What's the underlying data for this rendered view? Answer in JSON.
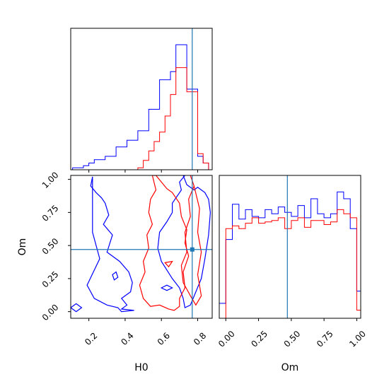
{
  "colors": {
    "series_a": "#0000ff",
    "series_b": "#ff0000",
    "truth": "#1f77b4",
    "axes": "#000000"
  },
  "chart_data": [
    {
      "type": "histogram",
      "panel": "H0 marginal",
      "xlim": [
        0.1,
        0.88
      ],
      "y_ticks_shown": false,
      "series": [
        {
          "color": "blue",
          "bin_edges": [
            0.11,
            0.14,
            0.17,
            0.2,
            0.23,
            0.26,
            0.29,
            0.32,
            0.35,
            0.38,
            0.41,
            0.44,
            0.47,
            0.5,
            0.53,
            0.56,
            0.59,
            0.62,
            0.65,
            0.68,
            0.71,
            0.74,
            0.77,
            0.8,
            0.83,
            0.86
          ],
          "heights": [
            0.015,
            0.015,
            0.03,
            0.05,
            0.075,
            0.075,
            0.1,
            0.1,
            0.17,
            0.17,
            0.22,
            0.22,
            0.29,
            0.29,
            0.45,
            0.45,
            0.67,
            0.67,
            0.73,
            0.93,
            0.93,
            0.6,
            0.6,
            0.1,
            0.05
          ]
        },
        {
          "color": "red",
          "bin_edges": [
            0.11,
            0.14,
            0.17,
            0.2,
            0.23,
            0.26,
            0.29,
            0.32,
            0.35,
            0.38,
            0.41,
            0.44,
            0.47,
            0.5,
            0.53,
            0.56,
            0.59,
            0.62,
            0.65,
            0.68,
            0.71,
            0.74,
            0.77,
            0.8,
            0.83,
            0.86
          ],
          "heights": [
            0,
            0,
            0,
            0,
            0,
            0,
            0,
            0,
            0,
            0,
            0,
            0,
            0.015,
            0.07,
            0.14,
            0.21,
            0.28,
            0.4,
            0.56,
            0.76,
            0.76,
            0.58,
            0.58,
            0.12,
            0.05
          ]
        }
      ],
      "vline": 0.77
    },
    {
      "type": "contour",
      "panel": "H0 vs Om",
      "xlabel": "H0",
      "ylabel": "Om",
      "xlim": [
        0.1,
        0.88
      ],
      "ylim": [
        -0.05,
        1.03
      ],
      "xticks": [
        0.2,
        0.4,
        0.6,
        0.8
      ],
      "xtick_labels": [
        "0.2",
        "0.4",
        "0.6",
        "0.8"
      ],
      "yticks": [
        0.0,
        0.25,
        0.5,
        0.75,
        1.0
      ],
      "ytick_labels": [
        "0.00",
        "0.25",
        "0.50",
        "0.75",
        "1.00"
      ],
      "contours": [
        {
          "color": "blue",
          "level": "outer",
          "x": [
            0.22,
            0.21,
            0.24,
            0.27,
            0.29,
            0.31,
            0.28,
            0.33,
            0.3,
            0.37,
            0.42,
            0.44,
            0.43,
            0.38,
            0.41,
            0.38,
            0.45,
            0.38,
            0.36,
            0.3,
            0.23,
            0.19,
            0.26,
            0.22
          ],
          "y": [
            1.02,
            0.95,
            0.9,
            0.86,
            0.82,
            0.73,
            0.66,
            0.58,
            0.45,
            0.38,
            0.3,
            0.22,
            0.15,
            0.1,
            0.05,
            0.02,
            0.01,
            0.0,
            0.03,
            0.05,
            0.1,
            0.2,
            0.4,
            0.6
          ]
        },
        {
          "color": "blue",
          "level": "inner",
          "x": [
            0.72,
            0.74,
            0.78,
            0.8,
            0.84,
            0.86,
            0.87,
            0.86,
            0.84,
            0.82,
            0.79,
            0.76,
            0.73,
            0.72,
            0.7,
            0.66,
            0.6,
            0.58,
            0.59,
            0.63,
            0.66,
            0.66,
            0.69,
            0.71,
            0.7,
            0.73
          ],
          "y": [
            1.03,
            0.96,
            0.92,
            0.94,
            0.9,
            0.85,
            0.75,
            0.58,
            0.4,
            0.25,
            0.15,
            0.05,
            0.03,
            0.1,
            0.18,
            0.25,
            0.38,
            0.48,
            0.6,
            0.68,
            0.75,
            0.82,
            0.88,
            0.92,
            0.98,
            1.03
          ]
        },
        {
          "color": "red",
          "level": "outer",
          "x": [
            0.55,
            0.57,
            0.54,
            0.53,
            0.55,
            0.52,
            0.53,
            0.5,
            0.51,
            0.48,
            0.5,
            0.54,
            0.59,
            0.64,
            0.67,
            0.7,
            0.7,
            0.73,
            0.72,
            0.75,
            0.73,
            0.74,
            0.71,
            0.7,
            0.66,
            0.63,
            0.6,
            0.57
          ],
          "y": [
            1.03,
            0.92,
            0.85,
            0.75,
            0.66,
            0.58,
            0.48,
            0.38,
            0.3,
            0.2,
            0.1,
            0.04,
            0.05,
            0.02,
            0.01,
            0.04,
            0.1,
            0.18,
            0.3,
            0.42,
            0.52,
            0.62,
            0.72,
            0.82,
            0.9,
            0.93,
            0.98,
            1.03
          ]
        },
        {
          "color": "red",
          "level": "inner",
          "x": [
            0.76,
            0.78,
            0.75,
            0.76,
            0.73,
            0.74,
            0.71,
            0.72,
            0.76,
            0.79,
            0.82,
            0.8,
            0.82,
            0.8,
            0.81,
            0.78,
            0.76
          ],
          "y": [
            1.03,
            0.95,
            0.85,
            0.72,
            0.6,
            0.45,
            0.35,
            0.22,
            0.12,
            0.05,
            0.12,
            0.28,
            0.45,
            0.6,
            0.78,
            0.95,
            1.03
          ]
        },
        {
          "color": "blue",
          "level": "island",
          "x": [
            0.1,
            0.13,
            0.16,
            0.13
          ],
          "y": [
            0.03,
            0.0,
            0.03,
            0.06
          ]
        },
        {
          "color": "blue",
          "level": "island",
          "x": [
            0.33,
            0.35,
            0.36,
            0.34,
            0.33
          ],
          "y": [
            0.28,
            0.3,
            0.26,
            0.24,
            0.28
          ]
        },
        {
          "color": "red",
          "level": "island",
          "x": [
            0.62,
            0.66,
            0.64
          ],
          "y": [
            0.37,
            0.38,
            0.34
          ]
        },
        {
          "color": "blue",
          "level": "island",
          "x": [
            0.6,
            0.63,
            0.66,
            0.63
          ],
          "y": [
            0.18,
            0.2,
            0.18,
            0.16
          ]
        }
      ],
      "crosshair": {
        "x": 0.77,
        "y": 0.47
      }
    },
    {
      "type": "histogram",
      "panel": "Om marginal",
      "xlabel": "Om",
      "xlim": [
        -0.05,
        1.03
      ],
      "xticks": [
        0.0,
        0.25,
        0.5,
        0.75,
        1.0
      ],
      "xtick_labels": [
        "0.00",
        "0.25",
        "0.50",
        "0.75",
        "1.00"
      ],
      "y_ticks_shown": false,
      "series": [
        {
          "color": "blue",
          "bin_edges": [
            -0.05,
            0.0,
            0.05,
            0.1,
            0.15,
            0.2,
            0.25,
            0.3,
            0.35,
            0.4,
            0.45,
            0.5,
            0.55,
            0.6,
            0.65,
            0.7,
            0.75,
            0.8,
            0.85,
            0.9,
            0.95,
            1.0,
            1.03
          ],
          "heights": [
            0.11,
            0.58,
            0.84,
            0.73,
            0.8,
            0.75,
            0.74,
            0.8,
            0.77,
            0.82,
            0.78,
            0.75,
            0.83,
            0.74,
            0.88,
            0.77,
            0.74,
            0.77,
            0.93,
            0.88,
            0.66,
            0.2
          ]
        },
        {
          "color": "red",
          "bin_edges": [
            -0.05,
            0.0,
            0.05,
            0.1,
            0.15,
            0.2,
            0.25,
            0.3,
            0.35,
            0.4,
            0.45,
            0.5,
            0.55,
            0.6,
            0.65,
            0.7,
            0.75,
            0.8,
            0.85,
            0.9,
            0.95,
            1.0,
            1.03
          ],
          "heights": [
            0,
            0.66,
            0.68,
            0.66,
            0.7,
            0.74,
            0.7,
            0.71,
            0.72,
            0.74,
            0.66,
            0.72,
            0.74,
            0.67,
            0.72,
            0.72,
            0.69,
            0.71,
            0.8,
            0.77,
            0.74,
            0.06
          ]
        }
      ],
      "vline": 0.47
    }
  ]
}
